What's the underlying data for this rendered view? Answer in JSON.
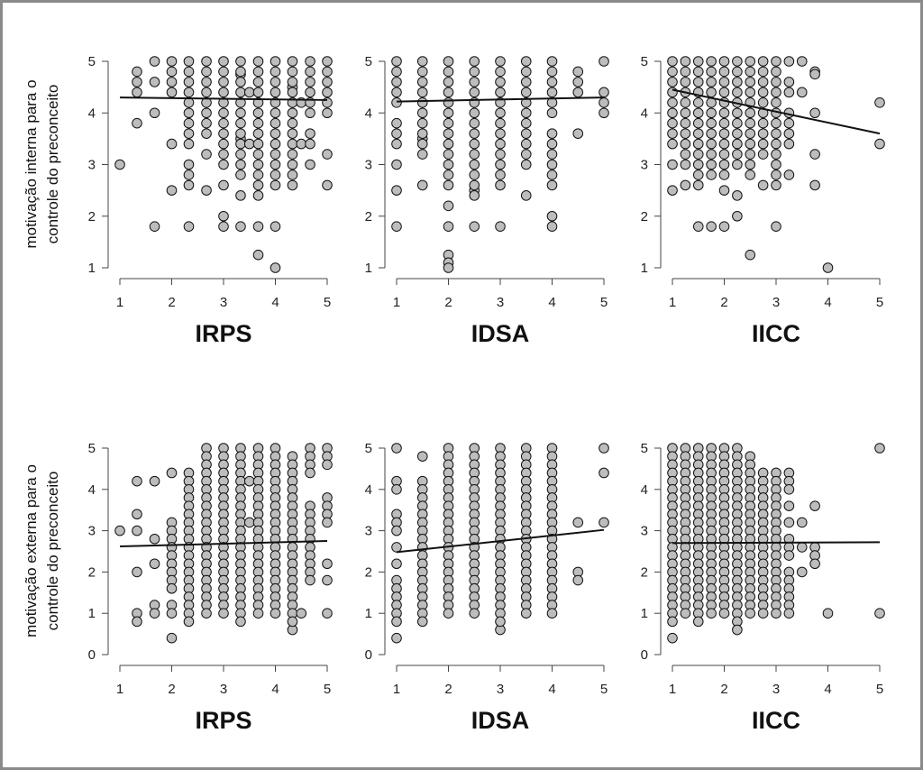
{
  "chart_data": [
    {
      "type": "scatter",
      "xlabel": "IRPS",
      "ylabel": [
        "motivação interna para o",
        "controle do preconceito"
      ],
      "xlim": [
        1,
        5
      ],
      "ylim": [
        1,
        5
      ],
      "xticks": [
        "1",
        "2",
        "3",
        "4",
        "5"
      ],
      "yticks": [
        "1",
        "2",
        "3",
        "4",
        "5"
      ],
      "step": 0.2,
      "columns": [
        {
          "x": 1,
          "ys": [
            3
          ]
        },
        {
          "x": 1.33,
          "ys": [
            4.8,
            4.6,
            4.4,
            3.8
          ]
        },
        {
          "x": 1.67,
          "ys": [
            5,
            4.6,
            4,
            1.8
          ]
        },
        {
          "x": 2,
          "ys": [
            5,
            4.8,
            4.6,
            4.4,
            3.4,
            2.5
          ]
        },
        {
          "x": 2.33,
          "ys": [
            3,
            2.8,
            2.6,
            1.8
          ],
          "range": [
            5,
            3.4
          ]
        },
        {
          "x": 2.67,
          "ys": [
            3.2,
            2.5
          ],
          "range": [
            5,
            3.6
          ]
        },
        {
          "x": 3,
          "ys": [
            2.6,
            2,
            1.8
          ],
          "range": [
            5,
            3
          ]
        },
        {
          "x": 3.33,
          "ys": [
            4.75,
            3.5,
            2.4,
            1.8
          ],
          "range": [
            5,
            2.8
          ]
        },
        {
          "x": 3.5,
          "ys": [
            4.4,
            3.4
          ]
        },
        {
          "x": 3.67,
          "ys": [
            2.4,
            1.8,
            1.25
          ],
          "range": [
            5,
            2.6
          ]
        },
        {
          "x": 4,
          "ys": [
            1.8,
            1
          ],
          "range": [
            5,
            2.6
          ]
        },
        {
          "x": 4.33,
          "ys": [
            4.5
          ],
          "range": [
            5,
            2.6
          ]
        },
        {
          "x": 4.5,
          "ys": [
            4.2,
            3.4
          ]
        },
        {
          "x": 4.67,
          "ys": [
            5,
            4.8,
            4.6,
            4.4,
            4.2,
            4,
            3.6,
            3.4,
            3
          ]
        },
        {
          "x": 5,
          "ys": [
            5,
            4.8,
            4.6,
            4.4,
            4.2,
            4,
            3.2,
            2.6
          ]
        }
      ],
      "regression": [
        4.3,
        4.25
      ]
    },
    {
      "type": "scatter",
      "xlabel": "IDSA",
      "ylabel": [],
      "xlim": [
        1,
        5
      ],
      "ylim": [
        1,
        5
      ],
      "xticks": [
        "1",
        "2",
        "3",
        "4",
        "5"
      ],
      "yticks": [
        "1",
        "2",
        "3",
        "4",
        "5"
      ],
      "step": 0.2,
      "columns": [
        {
          "x": 1,
          "ys": [
            5,
            4.8,
            4.6,
            4.4,
            4.2,
            3.8,
            3.6,
            3.4,
            3,
            2.5,
            1.8
          ]
        },
        {
          "x": 1.5,
          "ys": [
            3.5,
            2.6
          ],
          "range": [
            5,
            3.2
          ]
        },
        {
          "x": 2,
          "ys": [
            2.2,
            1.8,
            1.25,
            1.1,
            1
          ],
          "range": [
            5,
            2.6
          ]
        },
        {
          "x": 2.5,
          "ys": [
            2.5,
            1.8
          ],
          "range": [
            5,
            2.4
          ]
        },
        {
          "x": 3,
          "ys": [
            1.8
          ],
          "range": [
            5,
            2.6
          ]
        },
        {
          "x": 3.5,
          "ys": [
            2.4
          ],
          "range": [
            5,
            3
          ]
        },
        {
          "x": 4,
          "ys": [
            5,
            4.8,
            4.6,
            4.4,
            4.2,
            4,
            3.6,
            3.4,
            3.2,
            3,
            2.8,
            2.6,
            2,
            1.8
          ]
        },
        {
          "x": 4.5,
          "ys": [
            4.8,
            4.6,
            4.4,
            3.6
          ]
        },
        {
          "x": 5,
          "ys": [
            5,
            4.4,
            4.2,
            4
          ]
        }
      ],
      "regression": [
        4.22,
        4.3
      ]
    },
    {
      "type": "scatter",
      "xlabel": "IICC",
      "ylabel": [],
      "xlim": [
        1,
        5
      ],
      "ylim": [
        1,
        5
      ],
      "xticks": [
        "1",
        "2",
        "3",
        "4",
        "5"
      ],
      "yticks": [
        "1",
        "2",
        "3",
        "4",
        "5"
      ],
      "step": 0.2,
      "columns": [
        {
          "x": 1,
          "ys": [
            3,
            2.5
          ],
          "range": [
            5,
            3.4
          ]
        },
        {
          "x": 1.25,
          "ys": [
            2.6
          ],
          "range": [
            5,
            3
          ]
        },
        {
          "x": 1.5,
          "ys": [
            1.8
          ],
          "range": [
            5,
            2.6
          ]
        },
        {
          "x": 1.75,
          "ys": [
            1.8
          ],
          "range": [
            5,
            2.8
          ]
        },
        {
          "x": 2,
          "ys": [
            2.5,
            1.8
          ],
          "range": [
            5,
            2.8
          ]
        },
        {
          "x": 2.25,
          "ys": [
            2.4,
            2
          ],
          "range": [
            5,
            3
          ]
        },
        {
          "x": 2.5,
          "ys": [
            1.25
          ],
          "range": [
            5,
            2.8
          ]
        },
        {
          "x": 2.75,
          "ys": [
            2.6
          ],
          "range": [
            5,
            3.2
          ]
        },
        {
          "x": 3,
          "ys": [
            1.8
          ],
          "range": [
            5,
            2.6
          ]
        },
        {
          "x": 3.25,
          "ys": [
            5,
            4.6,
            4.4,
            4,
            3.8,
            3.6,
            3.4,
            2.8
          ]
        },
        {
          "x": 3.5,
          "ys": [
            5,
            4.4
          ]
        },
        {
          "x": 3.75,
          "ys": [
            4.8,
            4.75,
            4,
            3.2,
            2.6
          ]
        },
        {
          "x": 4,
          "ys": [
            1
          ]
        },
        {
          "x": 5,
          "ys": [
            4.2,
            3.4
          ]
        }
      ],
      "regression": [
        4.45,
        3.6
      ]
    },
    {
      "type": "scatter",
      "xlabel": "IRPS",
      "ylabel": [
        "motivação externa para o",
        "controle do preconceito"
      ],
      "xlim": [
        1,
        5
      ],
      "ylim": [
        0,
        5
      ],
      "xticks": [
        "1",
        "2",
        "3",
        "4",
        "5"
      ],
      "yticks": [
        "0",
        "1",
        "2",
        "3",
        "4",
        "5"
      ],
      "step": 0.2,
      "columns": [
        {
          "x": 1,
          "ys": [
            3
          ]
        },
        {
          "x": 1.33,
          "ys": [
            4.2,
            3.4,
            3,
            2,
            1,
            0.8
          ]
        },
        {
          "x": 1.67,
          "ys": [
            4.2,
            2.8,
            2.2,
            1.2,
            1
          ]
        },
        {
          "x": 2,
          "ys": [
            4.4,
            1.2,
            1,
            0.4
          ],
          "range": [
            3.2,
            1.6
          ]
        },
        {
          "x": 2.33,
          "ys": [],
          "range": [
            4.4,
            0.8
          ]
        },
        {
          "x": 2.67,
          "ys": [],
          "range": [
            5,
            1
          ]
        },
        {
          "x": 3,
          "ys": [],
          "range": [
            5,
            1
          ]
        },
        {
          "x": 3.33,
          "ys": [],
          "range": [
            5,
            0.8
          ]
        },
        {
          "x": 3.5,
          "ys": [
            4.2,
            3.2
          ]
        },
        {
          "x": 3.67,
          "ys": [],
          "range": [
            5,
            1
          ]
        },
        {
          "x": 4,
          "ys": [],
          "range": [
            5,
            1
          ]
        },
        {
          "x": 4.33,
          "ys": [
            0.6
          ],
          "range": [
            4.8,
            0.8
          ]
        },
        {
          "x": 4.5,
          "ys": [
            1
          ]
        },
        {
          "x": 4.67,
          "ys": [
            5,
            4.8,
            4.6,
            4.4,
            3.6,
            3.4,
            3.2,
            3,
            2.8,
            2.6,
            2.4,
            2.2,
            2,
            1.8
          ]
        },
        {
          "x": 5,
          "ys": [
            5,
            4.8,
            4.6,
            3.8,
            3.6,
            3.4,
            3.2,
            2.2,
            1.8,
            1
          ]
        }
      ],
      "regression": [
        2.62,
        2.75
      ]
    },
    {
      "type": "scatter",
      "xlabel": "IDSA",
      "ylabel": [],
      "xlim": [
        1,
        5
      ],
      "ylim": [
        0,
        5
      ],
      "xticks": [
        "1",
        "2",
        "3",
        "4",
        "5"
      ],
      "yticks": [
        "0",
        "1",
        "2",
        "3",
        "4",
        "5"
      ],
      "step": 0.2,
      "columns": [
        {
          "x": 1,
          "ys": [
            5,
            4.2,
            4,
            3.4,
            3.2,
            3,
            2.6,
            2.2,
            1.8,
            1.6,
            1.4,
            1.2,
            1,
            0.8,
            0.4
          ]
        },
        {
          "x": 1.5,
          "ys": [
            4.8
          ],
          "range": [
            4.2,
            0.8
          ]
        },
        {
          "x": 2,
          "ys": [],
          "range": [
            5,
            1
          ]
        },
        {
          "x": 2.5,
          "ys": [],
          "range": [
            5,
            1
          ]
        },
        {
          "x": 3,
          "ys": [
            0.6
          ],
          "range": [
            5,
            0.8
          ]
        },
        {
          "x": 3.5,
          "ys": [],
          "range": [
            5,
            1
          ]
        },
        {
          "x": 4,
          "ys": [],
          "range": [
            5,
            1
          ]
        },
        {
          "x": 4.5,
          "ys": [
            3.2,
            2,
            1.8
          ]
        },
        {
          "x": 5,
          "ys": [
            5,
            4.4,
            3.2
          ]
        }
      ],
      "regression": [
        2.48,
        3.02
      ]
    },
    {
      "type": "scatter",
      "xlabel": "IICC",
      "ylabel": [],
      "xlim": [
        1,
        5
      ],
      "ylim": [
        0,
        5
      ],
      "xticks": [
        "1",
        "2",
        "3",
        "4",
        "5"
      ],
      "yticks": [
        "0",
        "1",
        "2",
        "3",
        "4",
        "5"
      ],
      "step": 0.2,
      "columns": [
        {
          "x": 1,
          "ys": [
            0.4
          ],
          "range": [
            5,
            0.8
          ]
        },
        {
          "x": 1.25,
          "ys": [],
          "range": [
            5,
            1
          ]
        },
        {
          "x": 1.5,
          "ys": [],
          "range": [
            5,
            0.8
          ]
        },
        {
          "x": 1.75,
          "ys": [],
          "range": [
            5,
            1
          ]
        },
        {
          "x": 2,
          "ys": [],
          "range": [
            5,
            1
          ]
        },
        {
          "x": 2.25,
          "ys": [],
          "range": [
            5,
            0.6
          ]
        },
        {
          "x": 2.5,
          "ys": [],
          "range": [
            4.8,
            1
          ]
        },
        {
          "x": 2.75,
          "ys": [],
          "range": [
            4.4,
            1
          ]
        },
        {
          "x": 3,
          "ys": [],
          "range": [
            4.4,
            1
          ]
        },
        {
          "x": 3.25,
          "ys": [
            4.4,
            4.2,
            4,
            3.6,
            3.2,
            2.8,
            2.6,
            2.4,
            2,
            1.8,
            1.6,
            1.4,
            1.2,
            1
          ]
        },
        {
          "x": 3.5,
          "ys": [
            3.2,
            2.6,
            2
          ]
        },
        {
          "x": 3.75,
          "ys": [
            3.6,
            2.6,
            2.4,
            2.2
          ]
        },
        {
          "x": 4,
          "ys": [
            1
          ]
        },
        {
          "x": 5,
          "ys": [
            5,
            1
          ]
        }
      ],
      "regression": [
        2.7,
        2.72
      ]
    }
  ]
}
